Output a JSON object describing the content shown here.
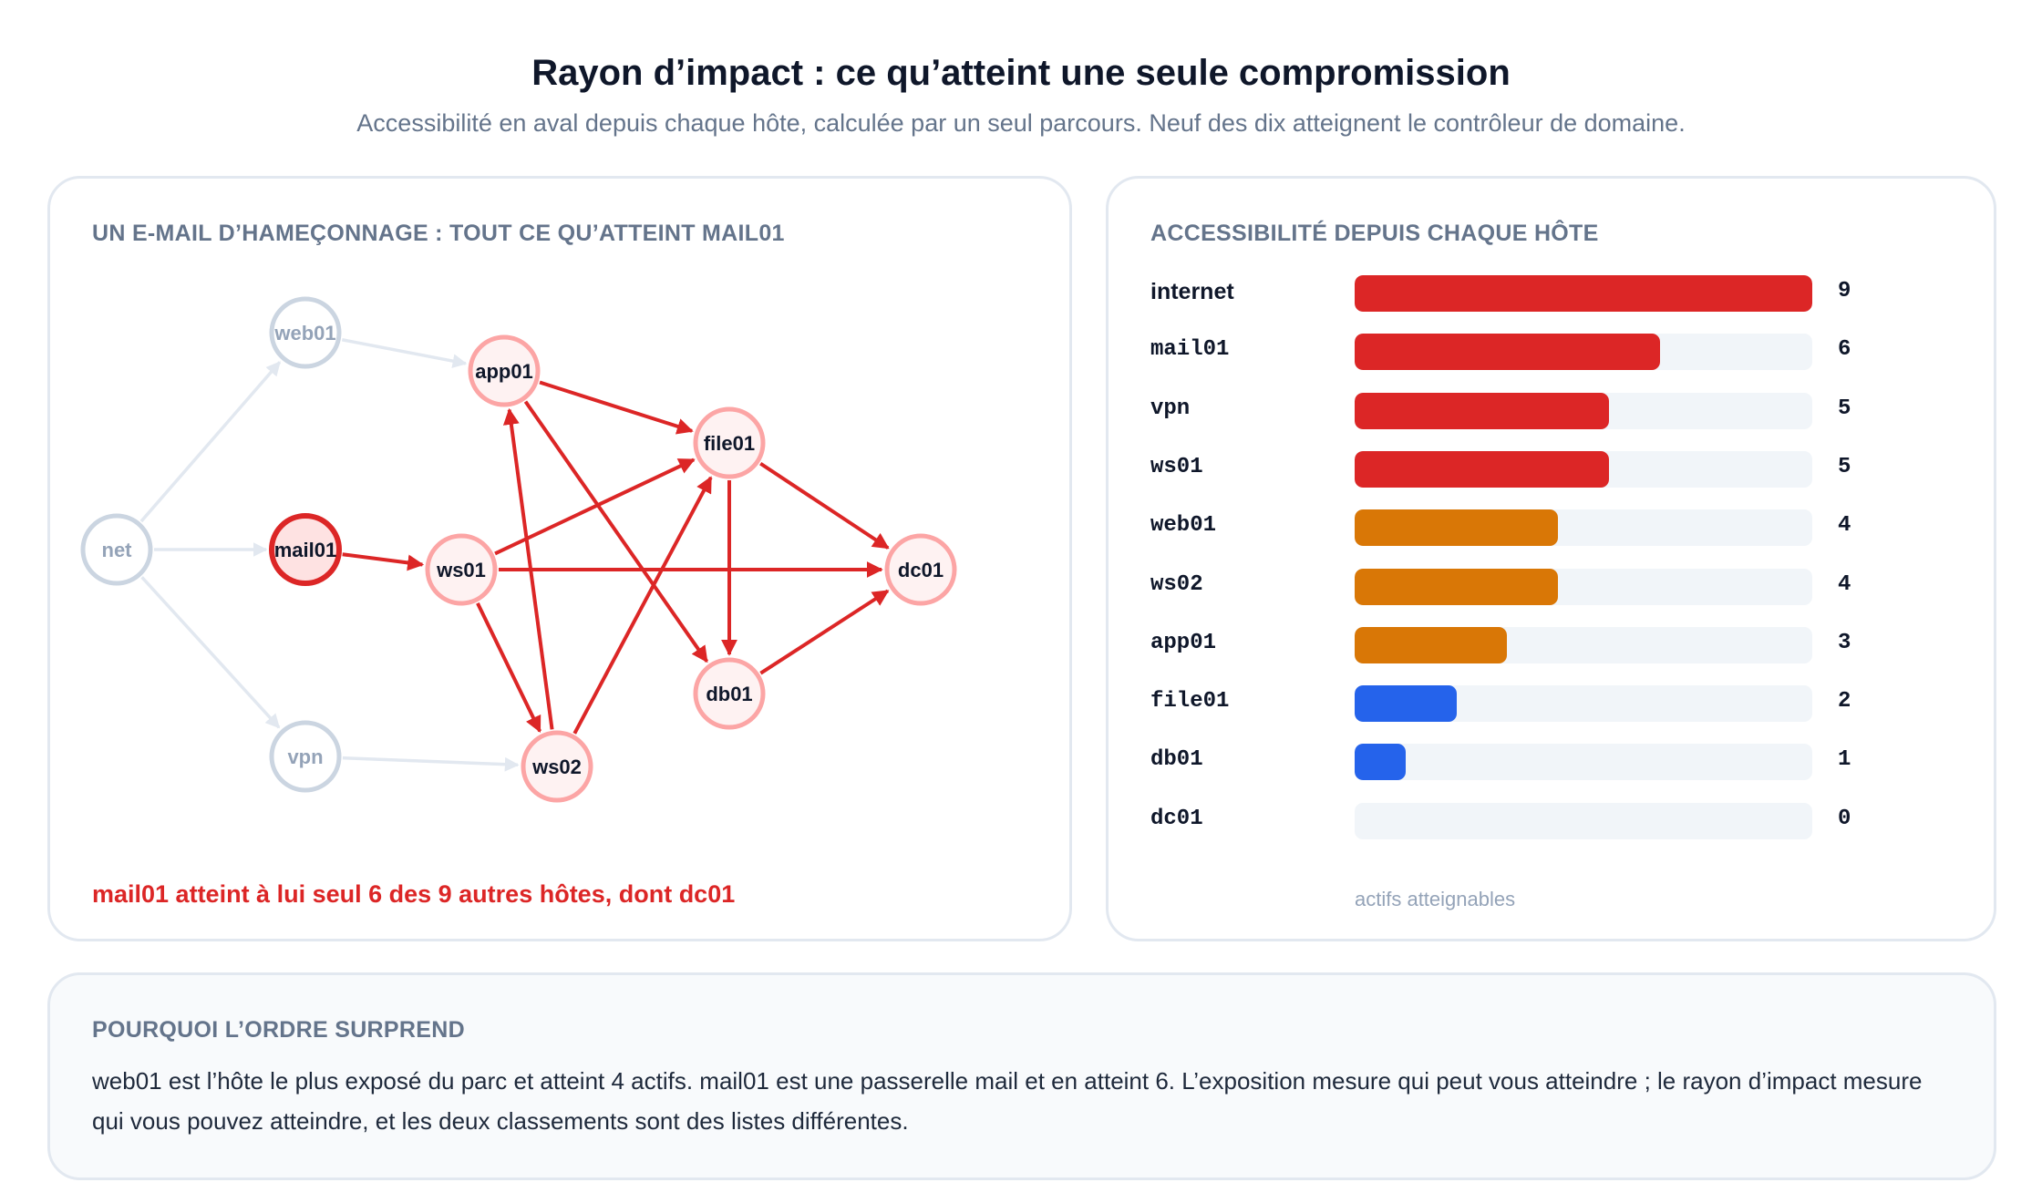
{
  "header": {
    "title": "Rayon d’impact : ce qu’atteint une seule compromission",
    "subtitle": "Accessibilité en aval depuis chaque hôte, calculée par un seul parcours. Neuf des dix atteignent le contrôleur de domaine."
  },
  "graph_panel": {
    "heading": "UN E-MAIL D’HAMEÇONNAGE : TOUT CE QU’ATTEINT MAIL01",
    "callout": "mail01 atteint à lui seul 6 des 9 autres hôtes, dont dc01",
    "nodes": [
      {
        "id": "net",
        "label": "net",
        "state": "inactive"
      },
      {
        "id": "web01",
        "label": "web01",
        "state": "inactive"
      },
      {
        "id": "vpn",
        "label": "vpn",
        "state": "inactive"
      },
      {
        "id": "mail01",
        "label": "mail01",
        "state": "source"
      },
      {
        "id": "app01",
        "label": "app01",
        "state": "reached"
      },
      {
        "id": "ws01",
        "label": "ws01",
        "state": "reached"
      },
      {
        "id": "ws02",
        "label": "ws02",
        "state": "reached"
      },
      {
        "id": "file01",
        "label": "file01",
        "state": "reached"
      },
      {
        "id": "db01",
        "label": "db01",
        "state": "reached"
      },
      {
        "id": "dc01",
        "label": "dc01",
        "state": "reached"
      }
    ],
    "edges": [
      {
        "from": "net",
        "to": "web01",
        "state": "inactive"
      },
      {
        "from": "net",
        "to": "mail01",
        "state": "inactive"
      },
      {
        "from": "net",
        "to": "vpn",
        "state": "inactive"
      },
      {
        "from": "web01",
        "to": "app01",
        "state": "inactive"
      },
      {
        "from": "vpn",
        "to": "ws02",
        "state": "inactive"
      },
      {
        "from": "mail01",
        "to": "ws01",
        "state": "active"
      },
      {
        "from": "ws01",
        "to": "file01",
        "state": "active"
      },
      {
        "from": "ws01",
        "to": "dc01",
        "state": "active"
      },
      {
        "from": "ws01",
        "to": "ws02",
        "state": "active"
      },
      {
        "from": "ws02",
        "to": "app01",
        "state": "active"
      },
      {
        "from": "ws02",
        "to": "file01",
        "state": "active"
      },
      {
        "from": "app01",
        "to": "file01",
        "state": "active"
      },
      {
        "from": "app01",
        "to": "db01",
        "state": "active"
      },
      {
        "from": "file01",
        "to": "db01",
        "state": "active"
      },
      {
        "from": "file01",
        "to": "dc01",
        "state": "active"
      },
      {
        "from": "db01",
        "to": "dc01",
        "state": "active"
      }
    ],
    "colors": {
      "active_edge": "#dc2626",
      "inactive_edge": "#e2e8f0",
      "source_fill": "#fee2e2",
      "source_stroke": "#dc2626",
      "reached_fill": "#fef2f2",
      "reached_stroke": "#fca5a5",
      "inactive_fill": "#ffffff",
      "inactive_stroke": "#cbd5e1",
      "inactive_text": "#94a3b8",
      "active_text": "#0f172a"
    }
  },
  "chart_data": {
    "type": "bar",
    "orientation": "horizontal",
    "title": "ACCESSIBILITÉ DEPUIS CHAQUE HÔTE",
    "xlabel": "actifs atteignables",
    "xlim": [
      0,
      9
    ],
    "categories": [
      "internet",
      "mail01",
      "vpn",
      "ws01",
      "web01",
      "ws02",
      "app01",
      "file01",
      "db01",
      "dc01"
    ],
    "values": [
      9,
      6,
      5,
      5,
      4,
      4,
      3,
      2,
      1,
      0
    ],
    "bar_colors": [
      "#dc2626",
      "#dc2626",
      "#dc2626",
      "#dc2626",
      "#d97706",
      "#d97706",
      "#d97706",
      "#2563eb",
      "#2563eb",
      "#2563eb"
    ],
    "track_color": "#f1f5f9",
    "value_labels": true,
    "grid": false
  },
  "note_panel": {
    "heading": "POURQUOI L’ORDRE SURPREND",
    "text": "web01 est l’hôte le plus exposé du parc et atteint 4 actifs. mail01 est une passerelle mail et en atteint 6. L’exposition mesure qui peut vous atteindre ; le rayon d’impact mesure qui vous pouvez atteindre, et les deux classements sont des listes différentes."
  }
}
